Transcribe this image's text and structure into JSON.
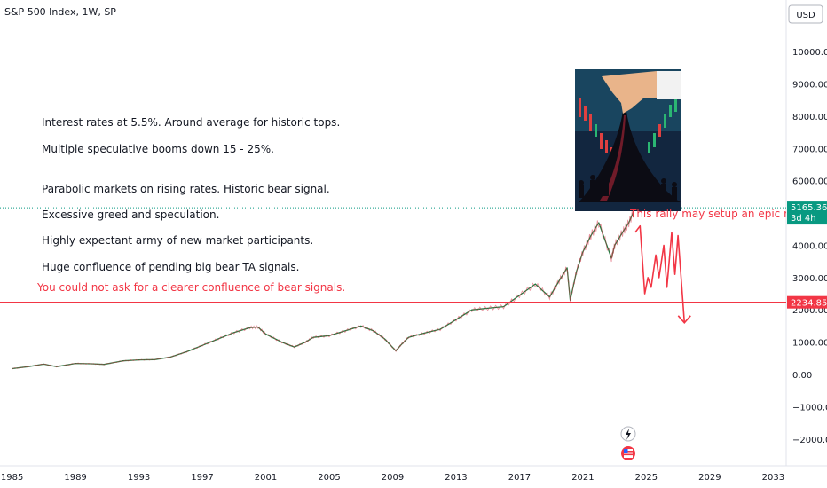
{
  "header": {
    "title": "S&P 500 Index, 1W, SP"
  },
  "currency_button": "USD",
  "notes": {
    "n1": "Interest rates at 5.5%. Around average for historic tops.",
    "n2": "Multiple speculative booms down 15 - 25%.",
    "n3": "Parabolic markets on rising rates. Historic bear signal.",
    "n4": "Excessive greed and speculation.",
    "n5": "Highly expectant army of new market participants.",
    "n6": "Huge confluence of pending big bear TA signals.",
    "n7": "You could not ask for a clearer confluence of bear signals.",
    "rug": "This rally may setup an epic rug pull"
  },
  "price_badge": {
    "value": "5165.36",
    "sub": "3d 4h",
    "color": "#089981"
  },
  "level_badge": {
    "value": "2234.85",
    "color": "#f23645"
  },
  "chart_data": {
    "type": "line",
    "title": "S&P 500 Index, 1W, SP",
    "xlabel": "",
    "ylabel": "",
    "ylim": [
      -2500,
      10500
    ],
    "y_ticks": [
      10000,
      9000,
      8000,
      7000,
      6000,
      5000,
      4000,
      3000,
      2000,
      1000,
      0,
      -1000,
      -2000
    ],
    "y_tick_labels": [
      "10000.00",
      "9000.00",
      "8000.00",
      "7000.00",
      "6000.00",
      "5000.00",
      "4000.00",
      "3000.00",
      "2000.00",
      "1000.00",
      "0.00",
      "−1000.00",
      "−2000.00"
    ],
    "x_ticks": [
      1985,
      1989,
      1993,
      1997,
      2001,
      2005,
      2009,
      2013,
      2017,
      2021,
      2025,
      2029,
      2033
    ],
    "x_tick_labels": [
      "1985",
      "1989",
      "1993",
      "1997",
      "2001",
      "2005",
      "2009",
      "2013",
      "2017",
      "2021",
      "2025",
      "2029",
      "2033"
    ],
    "series": [
      {
        "x": [
          1985.0,
          1986.0,
          1987.0,
          1987.8,
          1989.0,
          1990.0,
          1990.8,
          1992.0,
          1993.0,
          1994.0,
          1995.0,
          1996.0,
          1997.0,
          1998.0,
          1999.0,
          2000.0,
          2000.5,
          2001.0,
          2002.0,
          2002.8,
          2003.5,
          2004.0,
          2005.0,
          2006.0,
          2007.0,
          2007.8,
          2008.5,
          2009.2,
          2009.5,
          2010.0,
          2011.0,
          2012.0,
          2013.0,
          2014.0,
          2015.0,
          2016.0,
          2017.0,
          2018.0,
          2018.9,
          2019.5,
          2020.0,
          2020.2,
          2020.6,
          2021.0,
          2021.5,
          2022.0,
          2022.8,
          2023.0,
          2023.5,
          2023.9,
          2024.3
        ],
        "y": [
          180,
          240,
          320,
          240,
          340,
          330,
          310,
          420,
          450,
          460,
          540,
          700,
          900,
          1100,
          1300,
          1450,
          1470,
          1250,
          1000,
          850,
          1000,
          1150,
          1200,
          1350,
          1500,
          1350,
          1100,
          730,
          900,
          1150,
          1280,
          1400,
          1700,
          2000,
          2050,
          2100,
          2450,
          2800,
          2400,
          2900,
          3300,
          2300,
          3200,
          3800,
          4300,
          4700,
          3600,
          4000,
          4400,
          4700,
          5165
        ]
      }
    ],
    "projection": {
      "x": [
        2024.3,
        2024.6,
        2024.9,
        2025.1,
        2025.3,
        2025.6,
        2025.8,
        2026.1,
        2026.3,
        2026.6,
        2026.8,
        2027.0,
        2027.4
      ],
      "y": [
        4400,
        4600,
        2500,
        3000,
        2700,
        3700,
        3000,
        4000,
        2700,
        4400,
        3100,
        4300,
        1600
      ]
    },
    "horizontal_line": 2234.85,
    "last_value": 5165.36
  }
}
